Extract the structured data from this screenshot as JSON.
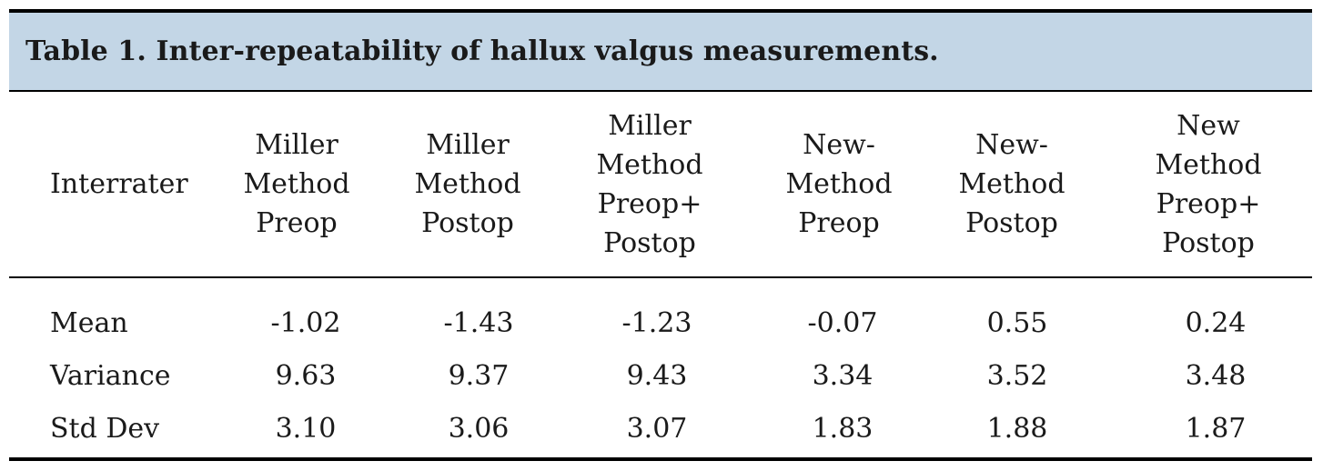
{
  "caption": "Table 1.  Inter-repeatability of hallux valgus measurements.",
  "columns": [
    "Interrater",
    "Miller\nMethod\nPreop",
    "Miller\nMethod\nPostop",
    "Miller\nMethod\nPreop+\nPostop",
    "New-\nMethod\nPreop",
    "New-\nMethod\nPostop",
    "New\nMethod\nPreop+\nPostop"
  ],
  "rows": [
    {
      "label": "Mean",
      "values": [
        "-1.02",
        "-1.43",
        "-1.23",
        "-0.07",
        "0.55",
        "0.24"
      ]
    },
    {
      "label": "Variance",
      "values": [
        "9.63",
        "9.37",
        "9.43",
        "3.34",
        "3.52",
        "3.48"
      ]
    },
    {
      "label": "Std Dev",
      "values": [
        "3.10",
        "3.06",
        "3.07",
        "1.83",
        "1.88",
        "1.87"
      ]
    }
  ]
}
